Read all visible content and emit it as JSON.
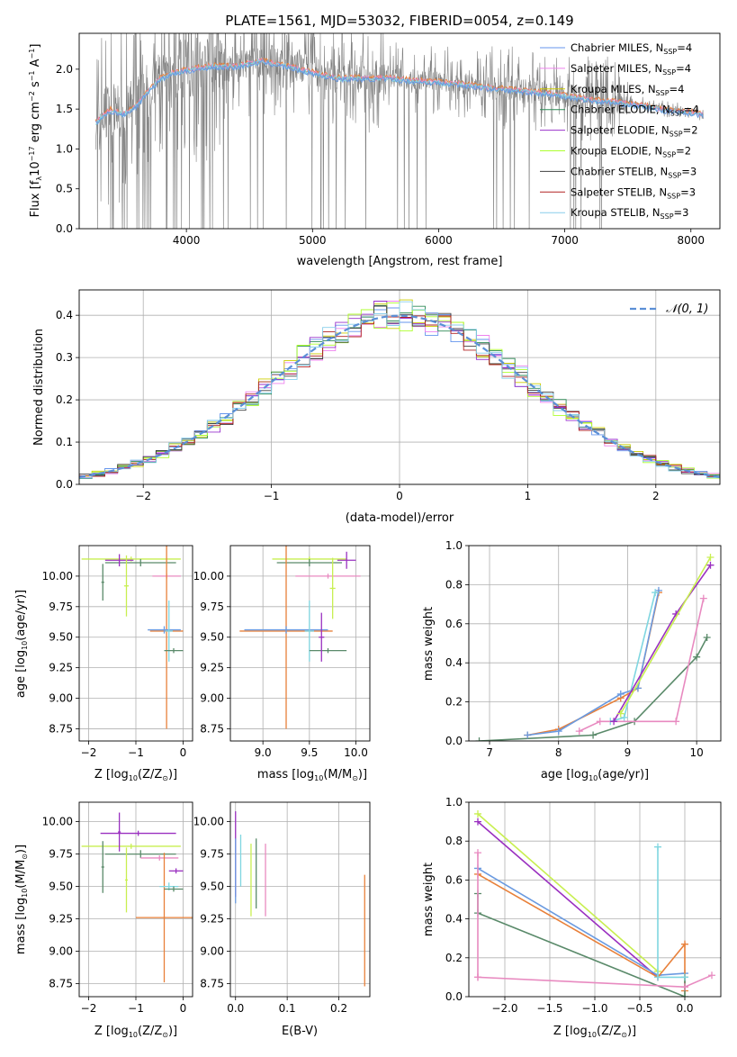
{
  "title": "PLATE=1561, MJD=53032, FIBERID=0054, z=0.149",
  "colors": {
    "c1": "#6495ed",
    "c2": "#ee82ee",
    "c3": "#cccc00",
    "c4": "#2e8b57",
    "c5": "#9932cc",
    "c6": "#adff2f",
    "c7": "#404040",
    "c8": "#b22222",
    "c9": "#87ceeb",
    "spec": "#808080",
    "orange": "#e8803a",
    "pink": "#e88ac0",
    "cyan": "#7fd6e0",
    "blue": "#6a9ae0",
    "green": "#5a8a6a",
    "purple": "#9a30c0",
    "lime": "#c8ef50"
  },
  "legend_entries": [
    "Chabrier MILES, N",
    "Salpeter MILES, N",
    "Kroupa MILES, N",
    "Chabrier ELODIE, N",
    "Salpeter ELODIE, N",
    "Kroupa ELODIE, N",
    "Chabrier STELIB, N",
    "Salpeter STELIB, N",
    "Kroupa STELIB, N"
  ],
  "legend_sub": "SSP",
  "legend_vals": [
    "=4",
    "=4",
    "=4",
    "=4",
    "=2",
    "=2",
    "=3",
    "=3",
    "=3"
  ],
  "legend2": "𝒩(0, 1)",
  "chart_data": [
    {
      "type": "line",
      "name": "spectrum",
      "title": "PLATE=1561, MJD=53032, FIBERID=0054, z=0.149",
      "xlabel": "wavelength [Angstrom, rest frame]",
      "ylabel_parts": [
        "Flux [f",
        "λ",
        "10",
        "−17",
        " erg cm",
        "−2",
        " s",
        "−1",
        " A",
        "−1",
        "]"
      ],
      "xlim": [
        3150,
        8230
      ],
      "ylim": [
        0,
        2.45
      ],
      "xticks": [
        4000,
        5000,
        6000,
        7000,
        8000
      ],
      "yticks": [
        0.0,
        0.5,
        1.0,
        1.5,
        2.0
      ],
      "continuum": [
        [
          3280,
          1.35
        ],
        [
          3400,
          1.5
        ],
        [
          3500,
          1.45
        ],
        [
          3600,
          1.55
        ],
        [
          3700,
          1.75
        ],
        [
          3800,
          1.9
        ],
        [
          3900,
          1.97
        ],
        [
          4000,
          2.0
        ],
        [
          4200,
          2.05
        ],
        [
          4400,
          2.05
        ],
        [
          4600,
          2.12
        ],
        [
          4800,
          2.05
        ],
        [
          5000,
          1.97
        ],
        [
          5200,
          1.9
        ],
        [
          5400,
          1.9
        ],
        [
          5600,
          1.9
        ],
        [
          5800,
          1.87
        ],
        [
          6000,
          1.85
        ],
        [
          6200,
          1.82
        ],
        [
          6400,
          1.78
        ],
        [
          6600,
          1.75
        ],
        [
          6800,
          1.72
        ],
        [
          7000,
          1.68
        ],
        [
          7200,
          1.63
        ],
        [
          7400,
          1.6
        ],
        [
          7600,
          1.56
        ],
        [
          7800,
          1.5
        ],
        [
          8000,
          1.47
        ],
        [
          8100,
          1.44
        ]
      ],
      "grid": false,
      "legend": "top-right"
    },
    {
      "type": "line",
      "name": "residuals",
      "xlabel": "(data-model)/error",
      "ylabel": "Normed distribution",
      "xlim": [
        -2.5,
        2.5
      ],
      "ylim": [
        0,
        0.46
      ],
      "xticks": [
        -2,
        -1,
        0,
        1,
        2
      ],
      "yticks": [
        0.0,
        0.1,
        0.2,
        0.3,
        0.4
      ],
      "grid": true,
      "legend": "top-right"
    },
    {
      "type": "scatter",
      "name": "age-vs-Z",
      "xlabel": "Z [log10(Z/Z⊙)]",
      "ylabel": "age  [log10(age/yr)]",
      "xlim": [
        -2.2,
        0.2
      ],
      "ylim": [
        8.65,
        10.25
      ],
      "xticks": [
        -2,
        -1,
        0
      ],
      "yticks": [
        8.75,
        9.0,
        9.25,
        9.5,
        9.75,
        10.0
      ],
      "points": [
        {
          "x": -1.1,
          "y": 10.14,
          "ex": 1.05,
          "ey": 0.02,
          "c": "lime"
        },
        {
          "x": -0.9,
          "y": 10.11,
          "ex": 0.75,
          "ey": 0.03,
          "c": "green"
        },
        {
          "x": -0.35,
          "y": 10.0,
          "ex": 0.3,
          "ey": 0.02,
          "c": "pink"
        },
        {
          "x": -1.35,
          "y": 10.13,
          "ex": 0.3,
          "ey": 0.05,
          "c": "purple"
        },
        {
          "x": -0.35,
          "y": 9.55,
          "ex": 0.35,
          "ey": 0.8,
          "c": "orange"
        },
        {
          "x": -0.4,
          "y": 9.56,
          "ex": 0.35,
          "ey": 0.03,
          "c": "blue"
        },
        {
          "x": -0.3,
          "y": 9.55,
          "ex": 0.08,
          "ey": 0.25,
          "c": "cyan"
        },
        {
          "x": -0.2,
          "y": 9.39,
          "ex": 0.2,
          "ey": 0.02,
          "c": "green"
        },
        {
          "x": -1.2,
          "y": 9.92,
          "ex": 0.05,
          "ey": 0.25,
          "c": "lime"
        },
        {
          "x": -1.7,
          "y": 9.95,
          "ex": 0.03,
          "ey": 0.15,
          "c": "green"
        }
      ]
    },
    {
      "type": "scatter",
      "name": "age-vs-mass",
      "xlabel": "mass [log10(M/M⊙)]",
      "xlim": [
        8.65,
        10.15
      ],
      "ylim": [
        8.65,
        10.25
      ],
      "xticks": [
        9.0,
        9.5,
        10.0
      ],
      "yticks": [
        8.75,
        9.0,
        9.25,
        9.5,
        9.75,
        10.0
      ],
      "points": [
        {
          "x": 9.5,
          "y": 10.14,
          "ex": 0.4,
          "ey": 0.02,
          "c": "lime"
        },
        {
          "x": 9.5,
          "y": 10.11,
          "ex": 0.35,
          "ey": 0.03,
          "c": "green"
        },
        {
          "x": 9.7,
          "y": 10.0,
          "ex": 0.35,
          "ey": 0.02,
          "c": "pink"
        },
        {
          "x": 9.9,
          "y": 10.13,
          "ex": 0.1,
          "ey": 0.07,
          "c": "purple"
        },
        {
          "x": 9.25,
          "y": 9.55,
          "ex": 0.5,
          "ey": 0.8,
          "c": "orange"
        },
        {
          "x": 9.25,
          "y": 9.56,
          "ex": 0.45,
          "ey": 0.03,
          "c": "blue"
        },
        {
          "x": 9.5,
          "y": 9.55,
          "ex": 0.05,
          "ey": 0.25,
          "c": "cyan"
        },
        {
          "x": 9.7,
          "y": 9.39,
          "ex": 0.2,
          "ey": 0.02,
          "c": "green"
        },
        {
          "x": 9.75,
          "y": 9.9,
          "ex": 0.03,
          "ey": 0.25,
          "c": "lime"
        },
        {
          "x": 9.63,
          "y": 9.5,
          "ex": 0.03,
          "ey": 0.2,
          "c": "purple"
        }
      ]
    },
    {
      "type": "line",
      "name": "mass-weight-vs-age",
      "xlabel": "age  [log10(age/yr)]",
      "ylabel": "mass weight",
      "xlim": [
        6.7,
        10.35
      ],
      "ylim": [
        0,
        1.0
      ],
      "xticks": [
        7,
        8,
        9,
        10
      ],
      "yticks": [
        0.0,
        0.2,
        0.4,
        0.6,
        0.8,
        1.0
      ],
      "series": [
        {
          "c": "green",
          "x": [
            6.85,
            8.5,
            9.1,
            10.0,
            10.15
          ],
          "y": [
            0.0,
            0.03,
            0.1,
            0.43,
            0.53
          ]
        },
        {
          "c": "orange",
          "x": [
            7.55,
            8.0,
            8.9,
            9.15,
            9.45
          ],
          "y": [
            0.03,
            0.06,
            0.22,
            0.27,
            0.76
          ]
        },
        {
          "c": "blue",
          "x": [
            7.55,
            8.0,
            8.9,
            9.15,
            9.45
          ],
          "y": [
            0.03,
            0.05,
            0.24,
            0.27,
            0.77
          ]
        },
        {
          "c": "cyan",
          "x": [
            8.75,
            8.95,
            9.4
          ],
          "y": [
            0.1,
            0.12,
            0.76
          ]
        },
        {
          "c": "pink",
          "x": [
            8.3,
            8.6,
            9.7,
            10.1
          ],
          "y": [
            0.05,
            0.1,
            0.1,
            0.73
          ]
        },
        {
          "c": "purple",
          "x": [
            8.8,
            9.7,
            10.2
          ],
          "y": [
            0.1,
            0.65,
            0.9
          ]
        },
        {
          "c": "lime",
          "x": [
            8.9,
            10.2
          ],
          "y": [
            0.14,
            0.94
          ]
        }
      ]
    },
    {
      "type": "scatter",
      "name": "mass-vs-Z",
      "xlabel": "Z [log10(Z/Z⊙)]",
      "ylabel": "mass [log10(M/M⊙)]",
      "xlim": [
        -2.2,
        0.2
      ],
      "ylim": [
        8.65,
        10.15
      ],
      "xticks": [
        -2,
        -1,
        0
      ],
      "yticks": [
        8.75,
        9.0,
        9.25,
        9.5,
        9.75,
        10.0
      ],
      "points": [
        {
          "x": -0.95,
          "y": 9.91,
          "ex": 0.8,
          "ey": 0.02,
          "c": "purple"
        },
        {
          "x": -1.1,
          "y": 9.81,
          "ex": 1.05,
          "ey": 0.02,
          "c": "lime"
        },
        {
          "x": -0.9,
          "y": 9.75,
          "ex": 0.75,
          "ey": 0.03,
          "c": "green"
        },
        {
          "x": -0.5,
          "y": 9.72,
          "ex": 0.4,
          "ey": 0.02,
          "c": "pink"
        },
        {
          "x": -0.4,
          "y": 9.26,
          "ex": 0.6,
          "ey": 0.5,
          "c": "orange"
        },
        {
          "x": -0.3,
          "y": 9.5,
          "ex": 0.2,
          "ey": 0.03,
          "c": "cyan"
        },
        {
          "x": -0.15,
          "y": 9.62,
          "ex": 0.15,
          "ey": 0.02,
          "c": "purple"
        },
        {
          "x": -0.2,
          "y": 9.48,
          "ex": 0.2,
          "ey": 0.02,
          "c": "green"
        },
        {
          "x": -1.35,
          "y": 9.92,
          "ex": 0.03,
          "ey": 0.15,
          "c": "purple"
        },
        {
          "x": -1.2,
          "y": 9.55,
          "ex": 0.03,
          "ey": 0.25,
          "c": "lime"
        },
        {
          "x": -1.7,
          "y": 9.65,
          "ex": 0.03,
          "ey": 0.2,
          "c": "green"
        }
      ]
    },
    {
      "type": "scatter",
      "name": "mass-vs-EBV",
      "xlabel": "E(B-V)",
      "xlim": [
        -0.01,
        0.26
      ],
      "ylim": [
        8.65,
        10.15
      ],
      "xticks": [
        0.0,
        0.1,
        0.2
      ],
      "yticks": [
        8.75,
        9.0,
        9.25,
        9.5,
        9.75,
        10.0
      ],
      "points": [
        {
          "x": 0.0,
          "y": 9.75,
          "ey": 0.33,
          "c": "purple"
        },
        {
          "x": 0.0,
          "y": 9.62,
          "ey": 0.25,
          "c": "blue"
        },
        {
          "x": 0.01,
          "y": 9.7,
          "ey": 0.2,
          "c": "cyan"
        },
        {
          "x": 0.03,
          "y": 9.55,
          "ey": 0.28,
          "c": "lime"
        },
        {
          "x": 0.04,
          "y": 9.6,
          "ey": 0.27,
          "c": "green"
        },
        {
          "x": 0.058,
          "y": 9.55,
          "ey": 0.28,
          "c": "pink"
        },
        {
          "x": 0.25,
          "y": 9.16,
          "ey": 0.43,
          "c": "orange"
        }
      ]
    },
    {
      "type": "line",
      "name": "mass-weight-vs-Z",
      "xlabel": "Z [log10(Z/Z⊙)]",
      "ylabel": "mass weight",
      "xlim": [
        -2.4,
        0.4
      ],
      "ylim": [
        0,
        1.0
      ],
      "xticks": [
        -2.0,
        -1.5,
        -1.0,
        -0.5,
        0.0
      ],
      "yticks": [
        0.0,
        0.2,
        0.4,
        0.6,
        0.8,
        1.0
      ],
      "series": [
        {
          "c": "lime",
          "x": [
            -2.3,
            -0.3
          ],
          "y": [
            0.94,
            0.13
          ]
        },
        {
          "c": "purple",
          "x": [
            -2.3,
            -0.3
          ],
          "y": [
            0.9,
            0.1
          ]
        },
        {
          "c": "blue",
          "x": [
            -2.3,
            -0.3,
            0.0
          ],
          "y": [
            0.66,
            0.11,
            0.12
          ]
        },
        {
          "c": "orange",
          "x": [
            -2.3,
            -0.3,
            0.0,
            0.0
          ],
          "y": [
            0.63,
            0.1,
            0.27,
            0.03
          ]
        },
        {
          "c": "green",
          "x": [
            -2.3,
            -2.3,
            0.0,
            0.0
          ],
          "y": [
            0.53,
            0.43,
            0.0,
            0.1
          ]
        },
        {
          "c": "cyan",
          "x": [
            -0.3,
            -0.3,
            0.0
          ],
          "y": [
            0.77,
            0.1,
            0.1
          ]
        },
        {
          "c": "pink",
          "x": [
            -2.3,
            -2.3,
            -2.3,
            0.0,
            0.3
          ],
          "y": [
            0.74,
            0.1,
            0.1,
            0.05,
            0.11
          ]
        }
      ]
    }
  ]
}
